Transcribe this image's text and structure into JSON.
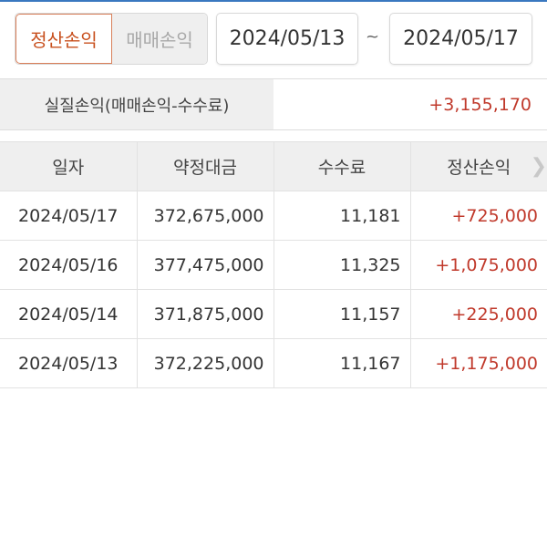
{
  "toggle": {
    "settlement": "정산손익",
    "trading": "매매손익",
    "active": "settlement"
  },
  "date_range": {
    "from": "2024/05/13",
    "separator": "~",
    "to": "2024/05/17"
  },
  "summary": {
    "label": "실질손익(매매손익-수수료)",
    "value": "+3,155,170"
  },
  "table": {
    "headers": [
      "일자",
      "약정대금",
      "수수료",
      "정산손익"
    ],
    "rows": [
      [
        "2024/05/17",
        "372,675,000",
        "11,181",
        "+725,000"
      ],
      [
        "2024/05/16",
        "377,475,000",
        "11,325",
        "+1,075,000"
      ],
      [
        "2024/05/14",
        "371,875,000",
        "11,157",
        "+225,000"
      ],
      [
        "2024/05/13",
        "372,225,000",
        "11,167",
        "+1,175,000"
      ]
    ]
  },
  "colors": {
    "accent": "#c8501e",
    "positive": "#c0392b",
    "top_bar": "#3a78c0"
  }
}
